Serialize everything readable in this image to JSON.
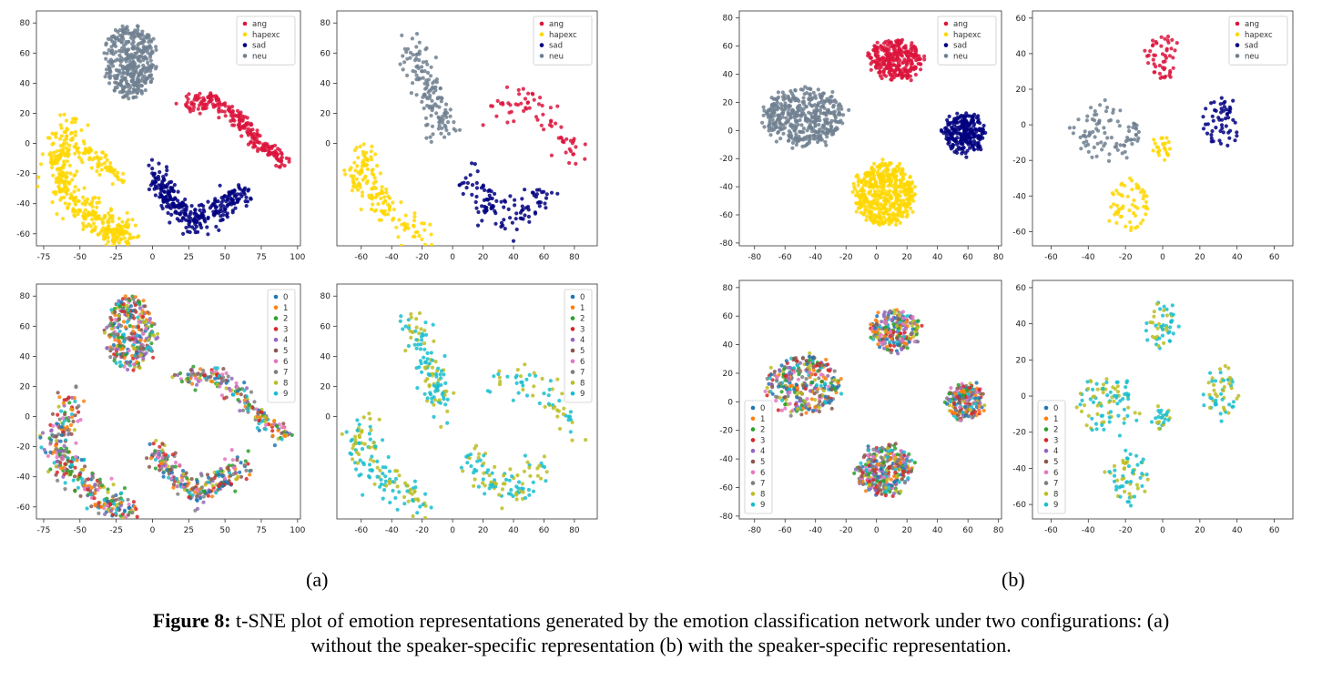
{
  "figure": {
    "caption_label": "Figure 8:",
    "caption_line1": "t-SNE plot of emotion representations generated by the emotion classification network under two configurations: (a)",
    "caption_line2": "without the speaker-specific representation (b) with the speaker-specific representation.",
    "sublabel_a": "(a)",
    "sublabel_b": "(b)"
  },
  "colors": {
    "ang": "#dc143c",
    "hapexc": "#ffd700",
    "sad": "#000080",
    "neu": "#708090",
    "speakers": [
      "#1f77b4",
      "#ff7f0e",
      "#2ca02c",
      "#d62728",
      "#9467bd",
      "#8c564b",
      "#e377c2",
      "#7f7f7f",
      "#bcbd22",
      "#17becf"
    ]
  },
  "chart_data": [
    {
      "id": "a-emotion-full",
      "type": "scatter",
      "xlim": [
        -80,
        102
      ],
      "ylim": [
        -68,
        88
      ],
      "xticks": [
        -75,
        -50,
        -25,
        0,
        25,
        50,
        75,
        100
      ],
      "yticks": [
        -60,
        -40,
        -20,
        0,
        20,
        40,
        60,
        80
      ],
      "legend": [
        "ang",
        "hapexc",
        "sad",
        "neu"
      ],
      "legend_position": "top-right",
      "clusters": [
        {
          "series": "neu",
          "shape": "blob",
          "cx": -15,
          "cy": 55,
          "rx": 17,
          "ry": 24,
          "n": 380
        },
        {
          "series": "ang",
          "shape": "path",
          "pts": [
            [
              22,
              25
            ],
            [
              42,
              28
            ],
            [
              60,
              16
            ],
            [
              75,
              -2
            ],
            [
              92,
              -13
            ]
          ],
          "w": 5,
          "n": 230
        },
        {
          "series": "hapexc",
          "shape": "path",
          "pts": [
            [
              -55,
              10
            ],
            [
              -68,
              -18
            ],
            [
              -52,
              -40
            ],
            [
              -30,
              -58
            ],
            [
              -18,
              -62
            ]
          ],
          "w": 9,
          "n": 380
        },
        {
          "series": "hapexc",
          "shape": "path",
          "pts": [
            [
              -45,
              -5
            ],
            [
              -25,
              -25
            ]
          ],
          "w": 5,
          "n": 60
        },
        {
          "series": "sad",
          "shape": "path",
          "pts": [
            [
              2,
              -18
            ],
            [
              12,
              -38
            ],
            [
              30,
              -52
            ],
            [
              48,
              -42
            ],
            [
              62,
              -32
            ]
          ],
          "w": 7,
          "n": 300
        }
      ]
    },
    {
      "id": "a-emotion-sub",
      "type": "scatter",
      "xlim": [
        -76,
        95
      ],
      "ylim": [
        -68,
        88
      ],
      "xticks": [
        -60,
        -40,
        -20,
        0,
        20,
        40,
        60,
        80
      ],
      "yticks": [
        0,
        20,
        40,
        60,
        80
      ],
      "legend": [
        "ang",
        "hapexc",
        "sad",
        "neu"
      ],
      "legend_position": "top-right",
      "clusters": [
        {
          "series": "neu",
          "shape": "path",
          "pts": [
            [
              -28,
              65
            ],
            [
              -18,
              40
            ],
            [
              -10,
              20
            ],
            [
              -8,
              5
            ]
          ],
          "w": 8,
          "n": 140
        },
        {
          "series": "ang",
          "shape": "path",
          "pts": [
            [
              25,
              20
            ],
            [
              48,
              28
            ],
            [
              68,
              8
            ],
            [
              85,
              -10
            ]
          ],
          "w": 8,
          "n": 70
        },
        {
          "series": "hapexc",
          "shape": "path",
          "pts": [
            [
              -55,
              -5
            ],
            [
              -62,
              -25
            ],
            [
              -40,
              -45
            ],
            [
              -20,
              -62
            ]
          ],
          "w": 9,
          "n": 150
        },
        {
          "series": "sad",
          "shape": "path",
          "pts": [
            [
              10,
              -20
            ],
            [
              25,
              -45
            ],
            [
              45,
              -50
            ],
            [
              62,
              -30
            ]
          ],
          "w": 9,
          "n": 110
        }
      ]
    },
    {
      "id": "b-emotion-full",
      "type": "scatter",
      "xlim": [
        -90,
        82
      ],
      "ylim": [
        -82,
        85
      ],
      "xticks": [
        -80,
        -60,
        -40,
        -20,
        0,
        20,
        40,
        60,
        80
      ],
      "yticks": [
        -80,
        -60,
        -40,
        -20,
        0,
        20,
        40,
        60,
        80
      ],
      "legend": [
        "ang",
        "hapexc",
        "sad",
        "neu"
      ],
      "legend_position": "top-right",
      "clusters": [
        {
          "series": "neu",
          "shape": "blob",
          "cx": -48,
          "cy": 10,
          "rx": 26,
          "ry": 20,
          "n": 420
        },
        {
          "series": "ang",
          "shape": "blob",
          "cx": 12,
          "cy": 50,
          "rx": 17,
          "ry": 14,
          "n": 300
        },
        {
          "series": "sad",
          "shape": "blob",
          "cx": 58,
          "cy": -2,
          "rx": 13,
          "ry": 14,
          "n": 240
        },
        {
          "series": "hapexc",
          "shape": "blob",
          "cx": 5,
          "cy": -45,
          "rx": 20,
          "ry": 22,
          "n": 460
        }
      ]
    },
    {
      "id": "b-emotion-sub",
      "type": "scatter",
      "xlim": [
        -70,
        70
      ],
      "ylim": [
        -68,
        64
      ],
      "xticks": [
        -60,
        -40,
        -20,
        0,
        20,
        40,
        60
      ],
      "yticks": [
        -60,
        -40,
        -20,
        0,
        20,
        40,
        60
      ],
      "legend": [
        "ang",
        "hapexc",
        "sad",
        "neu"
      ],
      "legend_position": "top-right",
      "clusters": [
        {
          "series": "ang",
          "shape": "blob",
          "cx": 0,
          "cy": 38,
          "rx": 8,
          "ry": 12,
          "n": 50
        },
        {
          "series": "neu",
          "shape": "blob",
          "cx": -30,
          "cy": -5,
          "rx": 18,
          "ry": 16,
          "n": 90
        },
        {
          "series": "sad",
          "shape": "blob",
          "cx": 32,
          "cy": 2,
          "rx": 10,
          "ry": 14,
          "n": 55
        },
        {
          "series": "hapexc",
          "shape": "blob",
          "cx": -18,
          "cy": -45,
          "rx": 10,
          "ry": 14,
          "n": 60
        },
        {
          "series": "hapexc",
          "shape": "blob",
          "cx": 0,
          "cy": -12,
          "rx": 5,
          "ry": 6,
          "n": 25
        }
      ]
    },
    {
      "id": "a-speaker-full",
      "type": "scatter",
      "xlim": [
        -80,
        102
      ],
      "ylim": [
        -68,
        88
      ],
      "xticks": [
        -75,
        -50,
        -25,
        0,
        25,
        50,
        75,
        100
      ],
      "yticks": [
        -60,
        -40,
        -20,
        0,
        20,
        40,
        60,
        80
      ],
      "legend": [
        "0",
        "1",
        "2",
        "3",
        "4",
        "5",
        "6",
        "7",
        "8",
        "9"
      ],
      "legend_position": "top-right",
      "clusters": [
        {
          "series": "mix",
          "shape": "blob",
          "cx": -15,
          "cy": 55,
          "rx": 16,
          "ry": 24,
          "n": 320
        },
        {
          "series": "mix",
          "shape": "path",
          "pts": [
            [
              22,
              25
            ],
            [
              42,
              28
            ],
            [
              60,
              16
            ],
            [
              75,
              -2
            ],
            [
              92,
              -13
            ]
          ],
          "w": 5,
          "n": 200
        },
        {
          "series": "mix",
          "shape": "path",
          "pts": [
            [
              -55,
              10
            ],
            [
              -68,
              -18
            ],
            [
              -52,
              -40
            ],
            [
              -30,
              -58
            ],
            [
              -18,
              -62
            ]
          ],
          "w": 9,
          "n": 330
        },
        {
          "series": "mix",
          "shape": "path",
          "pts": [
            [
              2,
              -18
            ],
            [
              12,
              -38
            ],
            [
              30,
              -52
            ],
            [
              48,
              -42
            ],
            [
              62,
              -32
            ]
          ],
          "w": 7,
          "n": 260
        }
      ]
    },
    {
      "id": "a-speaker-sub",
      "type": "scatter",
      "xlim": [
        -76,
        95
      ],
      "ylim": [
        -68,
        88
      ],
      "xticks": [
        -60,
        -40,
        -20,
        0,
        20,
        40,
        60,
        80
      ],
      "yticks": [
        0,
        20,
        40,
        60,
        80
      ],
      "legend": [
        "0",
        "1",
        "2",
        "3",
        "4",
        "5",
        "6",
        "7",
        "8",
        "9"
      ],
      "legend_position": "top-right",
      "clusters": [
        {
          "series": "pair",
          "shape": "path",
          "pts": [
            [
              -28,
              65
            ],
            [
              -18,
              40
            ],
            [
              -10,
              20
            ],
            [
              -8,
              5
            ]
          ],
          "w": 8,
          "n": 120
        },
        {
          "series": "pair",
          "shape": "path",
          "pts": [
            [
              25,
              20
            ],
            [
              48,
              28
            ],
            [
              68,
              8
            ],
            [
              85,
              -10
            ]
          ],
          "w": 8,
          "n": 60
        },
        {
          "series": "pair",
          "shape": "path",
          "pts": [
            [
              -55,
              -5
            ],
            [
              -62,
              -25
            ],
            [
              -40,
              -45
            ],
            [
              -20,
              -62
            ]
          ],
          "w": 9,
          "n": 130
        },
        {
          "series": "pair",
          "shape": "path",
          "pts": [
            [
              10,
              -20
            ],
            [
              25,
              -45
            ],
            [
              45,
              -50
            ],
            [
              62,
              -30
            ]
          ],
          "w": 9,
          "n": 100
        }
      ]
    },
    {
      "id": "b-speaker-full",
      "type": "scatter",
      "xlim": [
        -90,
        82
      ],
      "ylim": [
        -82,
        85
      ],
      "xticks": [
        -80,
        -60,
        -40,
        -20,
        0,
        20,
        40,
        60,
        80
      ],
      "yticks": [
        -80,
        -60,
        -40,
        -20,
        0,
        20,
        40,
        60,
        80
      ],
      "legend": [
        "0",
        "1",
        "2",
        "3",
        "4",
        "5",
        "6",
        "7",
        "8",
        "9"
      ],
      "legend_position": "bottom-left",
      "clusters": [
        {
          "series": "sub",
          "shape": "blob",
          "cx": -48,
          "cy": 12,
          "rx": 24,
          "ry": 20,
          "n": 320
        },
        {
          "series": "sub",
          "shape": "blob",
          "cx": 12,
          "cy": 50,
          "rx": 16,
          "ry": 14,
          "n": 240
        },
        {
          "series": "sub",
          "shape": "blob",
          "cx": 58,
          "cy": 0,
          "rx": 12,
          "ry": 13,
          "n": 200
        },
        {
          "series": "sub",
          "shape": "blob",
          "cx": 5,
          "cy": -48,
          "rx": 18,
          "ry": 18,
          "n": 340
        }
      ]
    },
    {
      "id": "b-speaker-sub",
      "type": "scatter",
      "xlim": [
        -70,
        70
      ],
      "ylim": [
        -68,
        64
      ],
      "xticks": [
        -60,
        -40,
        -20,
        0,
        20,
        40,
        60
      ],
      "yticks": [
        -60,
        -40,
        -20,
        0,
        20,
        40,
        60
      ],
      "legend": [
        "0",
        "1",
        "2",
        "3",
        "4",
        "5",
        "6",
        "7",
        "8",
        "9"
      ],
      "legend_position": "bottom-left",
      "clusters": [
        {
          "series": "pair",
          "shape": "blob",
          "cx": 0,
          "cy": 38,
          "rx": 8,
          "ry": 12,
          "n": 50
        },
        {
          "series": "pair",
          "shape": "blob",
          "cx": -30,
          "cy": -5,
          "rx": 18,
          "ry": 16,
          "n": 90
        },
        {
          "series": "pair",
          "shape": "blob",
          "cx": 32,
          "cy": 2,
          "rx": 10,
          "ry": 14,
          "n": 55
        },
        {
          "series": "pair",
          "shape": "blob",
          "cx": -18,
          "cy": -45,
          "rx": 10,
          "ry": 14,
          "n": 60
        },
        {
          "series": "pair",
          "shape": "blob",
          "cx": 0,
          "cy": -12,
          "rx": 5,
          "ry": 6,
          "n": 25
        }
      ]
    }
  ]
}
